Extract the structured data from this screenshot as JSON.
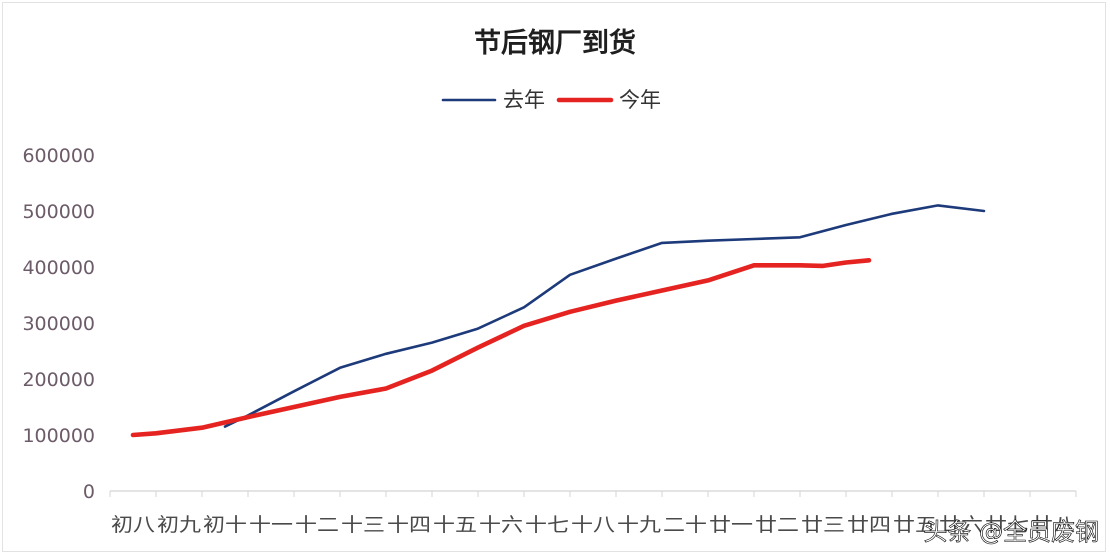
{
  "chart_data": {
    "type": "line",
    "title": "节后钢厂到货",
    "xlabel": "",
    "ylabel": "",
    "ylim": [
      0,
      600000
    ],
    "yticks": [
      0,
      100000,
      200000,
      300000,
      400000,
      500000,
      600000
    ],
    "grid": false,
    "legend_position": "top-center",
    "x_tick_labels": [
      "初八",
      "初九",
      "初十",
      "十一",
      "十二",
      "十三",
      "十四",
      "十五",
      "十六",
      "十七",
      "十八",
      "十九",
      "二十",
      "廿一",
      "廿二",
      "廿三",
      "廿四",
      "廿五",
      "廿六",
      "廿七",
      "廿八"
    ],
    "series": [
      {
        "name": "去年",
        "color": "#1d3a7a",
        "points": [
          [
            2.5,
            115000
          ],
          [
            3,
            135000
          ],
          [
            4,
            178000
          ],
          [
            5,
            220000
          ],
          [
            6,
            245000
          ],
          [
            7,
            265000
          ],
          [
            8,
            290000
          ],
          [
            9,
            328000
          ],
          [
            10,
            386000
          ],
          [
            11,
            415000
          ],
          [
            12,
            443000
          ],
          [
            13,
            447000
          ],
          [
            14,
            450000
          ],
          [
            15,
            453000
          ],
          [
            16,
            475000
          ],
          [
            17,
            495000
          ],
          [
            18,
            510000
          ],
          [
            19,
            500000
          ]
        ]
      },
      {
        "name": "今年",
        "color": "#e52421",
        "points": [
          [
            0.5,
            100000
          ],
          [
            1,
            103000
          ],
          [
            2,
            113000
          ],
          [
            3,
            132000
          ],
          [
            4,
            150000
          ],
          [
            5,
            168000
          ],
          [
            6,
            183000
          ],
          [
            7,
            215000
          ],
          [
            8,
            256000
          ],
          [
            9,
            295000
          ],
          [
            10,
            320000
          ],
          [
            11,
            340000
          ],
          [
            12,
            358000
          ],
          [
            13,
            376000
          ],
          [
            14,
            403000
          ],
          [
            15,
            403000
          ],
          [
            15.5,
            402000
          ],
          [
            16,
            408000
          ],
          [
            16.5,
            412000
          ]
        ]
      }
    ]
  },
  "watermark": "头条 @全员废钢"
}
